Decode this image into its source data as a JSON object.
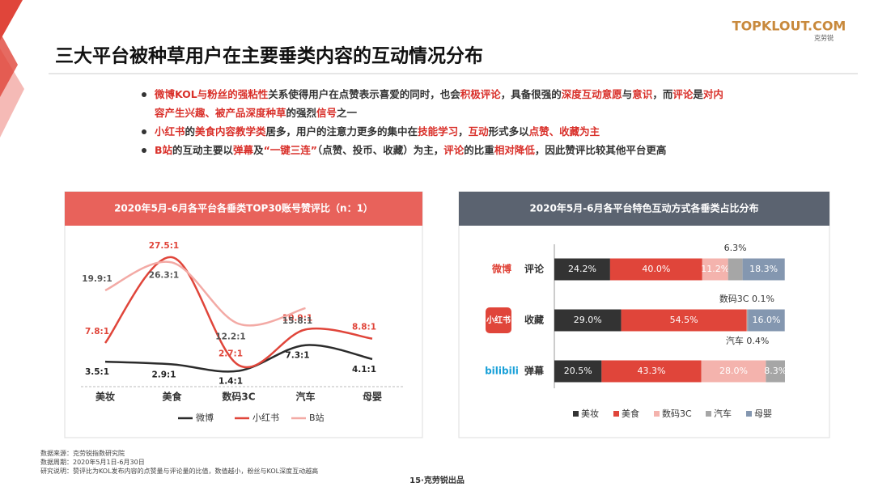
{
  "header": {
    "title": "三大平台被种草用户在主要垂类内容的互动情况分布",
    "logo": "TOPKLOUT.COM",
    "logo_sub": "克劳锐"
  },
  "bullets": [
    [
      {
        "text": "微博KOL与粉丝的强粘性",
        "em": true
      },
      {
        "text": "关系使得用户在点赞表示喜爱的同时，也会",
        "em": false
      },
      {
        "text": "积极评论",
        "em": true
      },
      {
        "text": "，具备很强的",
        "em": false
      },
      {
        "text": "深度互动意愿",
        "em": true
      },
      {
        "text": "与",
        "em": false
      },
      {
        "text": "意识",
        "em": true
      },
      {
        "text": "，而",
        "em": false
      },
      {
        "text": "评论",
        "em": true
      },
      {
        "text": "是",
        "em": false
      },
      {
        "text": "对内容产生兴趣、被产品深度种草",
        "em": true
      },
      {
        "text": "的强烈",
        "em": false
      },
      {
        "text": "信号",
        "em": true
      },
      {
        "text": "之一",
        "em": false
      }
    ],
    [
      {
        "text": "小红书",
        "em": true
      },
      {
        "text": "的",
        "em": false
      },
      {
        "text": "美食内容教学类",
        "em": true
      },
      {
        "text": "居多，用户的注意力更多的集中在",
        "em": false
      },
      {
        "text": "技能学习",
        "em": true
      },
      {
        "text": "，",
        "em": false
      },
      {
        "text": "互动",
        "em": true
      },
      {
        "text": "形式多以",
        "em": false
      },
      {
        "text": "点赞、收藏为主",
        "em": true
      }
    ],
    [
      {
        "text": "B站",
        "em": true
      },
      {
        "text": "的互动主要以",
        "em": false
      },
      {
        "text": "弹幕",
        "em": true
      },
      {
        "text": "及",
        "em": false
      },
      {
        "text": "“一键三连”",
        "em": true
      },
      {
        "text": "（点赞、投币、收藏）为主，",
        "em": false
      },
      {
        "text": "评论",
        "em": true
      },
      {
        "text": "的比重",
        "em": false
      },
      {
        "text": "相对降低",
        "em": true
      },
      {
        "text": "，因此赞评比较其他平台更高",
        "em": false
      }
    ]
  ],
  "chart_data": [
    {
      "type": "line",
      "title": "2020年5月-6月各平台各垂类TOP30账号赞评比（n：1）",
      "categories": [
        "美妆",
        "美食",
        "数码3C",
        "汽车",
        "母婴"
      ],
      "series": [
        {
          "name": "微博",
          "color": "#2b2b2b",
          "values": [
            3.5,
            2.9,
            1.4,
            7.3,
            4.1
          ],
          "value_labels": [
            "3.5:1",
            "2.9:1",
            "1.4:1",
            "7.3:1",
            "4.1:1"
          ]
        },
        {
          "name": "小红书",
          "color": "#e0453a",
          "values": [
            7.8,
            27.5,
            2.7,
            10.9,
            8.8
          ],
          "value_labels": [
            "7.8:1",
            "27.5:1",
            "2.7:1",
            "10.9:1",
            "8.8:1"
          ]
        },
        {
          "name": "B站",
          "color": "#f3aaa5",
          "values": [
            19.9,
            26.3,
            12.2,
            15.8,
            null
          ],
          "value_labels": [
            "19.9:1",
            "26.3:1",
            "12.2:1",
            "15.8:1",
            null
          ]
        }
      ]
    },
    {
      "type": "stacked-barh",
      "title": "2020年5月-6月各平台特色互动方式各垂类占比分布",
      "platforms": [
        "微博",
        "小红书",
        "bilibili"
      ],
      "categories": [
        "评论",
        "收藏",
        "弹幕"
      ],
      "series": [
        {
          "name": "美妆",
          "color": "#333333",
          "values": [
            24.2,
            29.0,
            20.5
          ],
          "value_labels": [
            "24.2%",
            "29.0%",
            "20.5%"
          ]
        },
        {
          "name": "美食",
          "color": "#e0453a",
          "values": [
            40.0,
            54.5,
            43.3
          ],
          "value_labels": [
            "40.0%",
            "54.5%",
            "43.3%"
          ]
        },
        {
          "name": "数码3C",
          "color": "#f4b3ad",
          "values": [
            11.2,
            0.1,
            28.0
          ],
          "value_labels": [
            "11.2%",
            "数码3C 0.1%",
            "28.0%"
          ]
        },
        {
          "name": "汽车",
          "color": "#a6a6a6",
          "values": [
            6.3,
            0.4,
            8.3
          ],
          "value_labels": [
            "6.3%",
            "汽车 0.4%",
            "8.3%"
          ]
        },
        {
          "name": "母婴",
          "color": "#8497b0",
          "values": [
            18.3,
            16.0,
            null
          ],
          "value_labels": [
            "18.3%",
            "16.0%",
            null
          ]
        }
      ]
    }
  ],
  "footer": {
    "source": "数据来源：克劳锐指数研究院",
    "period": "数据周期：2020年5月1日-6月30日",
    "note": "研究说明：赞评比为KOL发布内容的点赞量与评论量的比值，数值越小，粉丝与KOL深度互动越高",
    "page": "15·克劳锐出品"
  }
}
